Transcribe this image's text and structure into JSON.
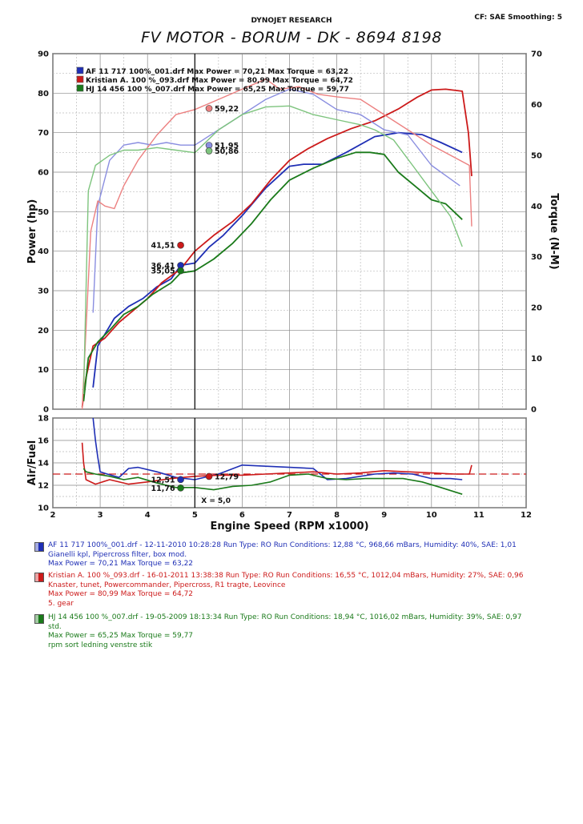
{
  "header": {
    "brand": "DYNOJET RESEARCH",
    "settings": "CF: SAE  Smoothing: 5",
    "title": "FV MOTOR - BORUM - DK - 8694 8198"
  },
  "colors": {
    "blue": "#1f2fb5",
    "red": "#cc1a1a",
    "green": "#1a7a1a",
    "light_blue": "#8a8ee0",
    "light_red": "#ec8080",
    "light_green": "#7ec47e"
  },
  "chart_data": [
    {
      "type": "line",
      "panel": "power-torque",
      "xlabel": "Engine Speed (RPM x1000)",
      "ylabel": "Power (hp)",
      "y2label": "Torque (N-M)",
      "xlim": [
        2,
        12
      ],
      "ylim": [
        0,
        90
      ],
      "y2lim": [
        0,
        70
      ],
      "grid": true,
      "cursor_x": 5.0,
      "series": [
        {
          "name": "AF 11 717 100%_001.drf",
          "measure": "power",
          "color": "#1f2fb5",
          "x": [
            2.85,
            2.95,
            3.1,
            3.3,
            3.6,
            3.9,
            4.2,
            4.5,
            4.7,
            5.0,
            5.3,
            5.6,
            6.0,
            6.5,
            7.0,
            7.3,
            7.7,
            8.2,
            8.8,
            9.3,
            9.8,
            10.2,
            10.65
          ],
          "y": [
            5.5,
            16,
            19,
            23,
            26,
            28,
            31,
            33,
            36.4,
            37,
            41,
            44,
            49,
            56,
            61.5,
            62,
            62,
            65,
            69,
            70,
            69.5,
            67.5,
            65
          ]
        },
        {
          "name": "Kristian A. 100 %_093.drf",
          "measure": "power",
          "color": "#cc1a1a",
          "x": [
            2.62,
            2.7,
            2.85,
            3.1,
            3.4,
            3.7,
            4.0,
            4.3,
            4.7,
            5.0,
            5.4,
            5.8,
            6.2,
            6.6,
            7.0,
            7.4,
            7.8,
            8.3,
            8.8,
            9.3,
            9.7,
            10.0,
            10.3,
            10.65,
            10.78,
            10.85
          ],
          "y": [
            0.5,
            8,
            16,
            18,
            22,
            25,
            28,
            32,
            35.5,
            40,
            44,
            47.5,
            52,
            58,
            63,
            66,
            68.5,
            71,
            73,
            76,
            79,
            80.8,
            81,
            80.5,
            70,
            59
          ]
        },
        {
          "name": "HJ 14 456 100 %_007.drf",
          "measure": "power",
          "color": "#1a7a1a",
          "x": [
            2.65,
            2.75,
            2.95,
            3.2,
            3.5,
            3.8,
            4.1,
            4.5,
            4.7,
            5.0,
            5.4,
            5.8,
            6.2,
            6.6,
            7.0,
            7.5,
            8.0,
            8.4,
            8.7,
            9.0,
            9.3,
            9.7,
            10.0,
            10.3,
            10.65
          ],
          "y": [
            2,
            13,
            17,
            20,
            24,
            26,
            29,
            32,
            34.5,
            35,
            38,
            42,
            47,
            53,
            58,
            61,
            63.5,
            65,
            65,
            64.5,
            60,
            56,
            53,
            52,
            48
          ]
        },
        {
          "name": "AF 11 717 100%_001.drf",
          "measure": "torque",
          "color": "#8a8ee0",
          "x": [
            2.85,
            2.95,
            3.2,
            3.5,
            3.8,
            4.1,
            4.4,
            4.7,
            5.0,
            5.5,
            6.0,
            6.5,
            7.0,
            7.5,
            8.0,
            8.5,
            9.0,
            9.5,
            10.0,
            10.3,
            10.6
          ],
          "y": [
            19,
            40,
            49,
            52,
            52.5,
            52,
            52.5,
            52,
            52,
            55,
            58,
            61,
            63,
            62,
            59,
            58,
            55,
            54,
            48,
            46,
            44
          ]
        },
        {
          "name": "Kristian A. 100 %_093.drf",
          "measure": "torque",
          "color": "#ec8080",
          "x": [
            2.62,
            2.8,
            2.95,
            3.1,
            3.3,
            3.5,
            3.8,
            4.2,
            4.6,
            5.0,
            5.5,
            6.0,
            6.5,
            6.8,
            7.2,
            7.6,
            8.0,
            8.5,
            9.0,
            9.5,
            10.0,
            10.5,
            10.8,
            10.85
          ],
          "y": [
            0,
            35,
            41,
            40,
            39.5,
            44,
            49,
            54,
            58,
            59,
            61,
            63,
            65,
            63,
            63.5,
            62,
            61.5,
            61,
            58,
            55,
            52,
            49.5,
            48,
            36
          ]
        },
        {
          "name": "HJ 14 456 100 %_007.drf",
          "measure": "torque",
          "color": "#7ec47e",
          "x": [
            2.65,
            2.75,
            2.9,
            3.2,
            3.5,
            3.8,
            4.2,
            4.6,
            5.0,
            5.5,
            6.0,
            6.5,
            7.0,
            7.5,
            8.0,
            8.5,
            8.8,
            9.2,
            9.6,
            10.0,
            10.4,
            10.65
          ],
          "y": [
            3,
            43,
            48,
            50,
            51,
            51,
            51.5,
            51,
            50.5,
            55,
            58,
            59.5,
            59.7,
            58,
            57,
            56,
            55,
            53,
            48,
            43,
            38,
            32
          ]
        }
      ],
      "annotations": [
        {
          "x": 5.3,
          "y": 59.22,
          "axis": "torque",
          "label": "59,22",
          "color": "#ec8080"
        },
        {
          "x": 5.3,
          "y": 51.95,
          "axis": "torque",
          "label": "51,95",
          "color": "#8a8ee0"
        },
        {
          "x": 5.3,
          "y": 50.86,
          "axis": "torque",
          "label": "50,86",
          "color": "#7ec47e"
        },
        {
          "x": 4.7,
          "y": 41.51,
          "axis": "power",
          "label": "41,51",
          "color": "#cc1a1a"
        },
        {
          "x": 4.7,
          "y": 36.41,
          "axis": "power",
          "label": "36,41",
          "color": "#1f2fb5"
        },
        {
          "x": 4.7,
          "y": 35.05,
          "axis": "power",
          "label": "35,05",
          "color": "#1a7a1a"
        }
      ]
    },
    {
      "type": "line",
      "panel": "air-fuel",
      "ylabel": "Air/Fuel",
      "xlim": [
        2,
        12
      ],
      "ylim": [
        10,
        18
      ],
      "grid": true,
      "reference_line": 13.0,
      "cursor_readout": "X = 5,0",
      "series": [
        {
          "name": "AF 11 717 100%_001.drf",
          "color": "#1f2fb5",
          "x": [
            2.85,
            2.9,
            2.95,
            3.0,
            3.15,
            3.4,
            3.6,
            3.8,
            4.2,
            4.6,
            5.0,
            5.5,
            6.0,
            6.5,
            7.0,
            7.5,
            7.8,
            8.2,
            8.8,
            9.2,
            9.6,
            10.0,
            10.4,
            10.65
          ],
          "y": [
            18,
            16,
            14.5,
            13.2,
            13.0,
            12.7,
            13.5,
            13.6,
            13.2,
            12.7,
            12.5,
            13.0,
            13.8,
            13.7,
            13.6,
            13.5,
            12.5,
            12.6,
            13.0,
            13.1,
            13.0,
            12.6,
            12.6,
            12.5
          ]
        },
        {
          "name": "Kristian A. 100 %_093.drf",
          "color": "#cc1a1a",
          "x": [
            2.62,
            2.65,
            2.7,
            2.9,
            3.2,
            3.6,
            4.0,
            4.5,
            5.0,
            5.5,
            6.0,
            6.5,
            7.0,
            7.5,
            8.0,
            8.5,
            9.0,
            9.5,
            10.0,
            10.5,
            10.8,
            10.85
          ],
          "y": [
            15.8,
            14,
            12.5,
            12.1,
            12.5,
            12.1,
            12.3,
            12.6,
            12.8,
            12.9,
            12.9,
            13.0,
            13.1,
            13.2,
            13.0,
            13.1,
            13.3,
            13.2,
            13.1,
            13.0,
            13.0,
            13.8
          ]
        },
        {
          "name": "HJ 14 456 100 %_007.drf",
          "color": "#1a7a1a",
          "x": [
            2.65,
            2.7,
            2.9,
            3.2,
            3.5,
            3.8,
            4.2,
            4.6,
            5.0,
            5.4,
            5.8,
            6.2,
            6.6,
            7.0,
            7.4,
            7.8,
            8.2,
            8.6,
            9.0,
            9.4,
            9.8,
            10.2,
            10.65
          ],
          "y": [
            13.5,
            13.2,
            13.0,
            12.8,
            12.5,
            12.7,
            12.2,
            11.8,
            11.8,
            11.6,
            11.9,
            12.0,
            12.3,
            12.9,
            13.0,
            12.6,
            12.5,
            12.6,
            12.6,
            12.6,
            12.3,
            11.8,
            11.2
          ]
        }
      ],
      "annotations": [
        {
          "x": 5.3,
          "y": 12.79,
          "label": "12,79",
          "color": "#cc1a1a"
        },
        {
          "x": 4.7,
          "y": 12.51,
          "label": "12,51",
          "color": "#1f2fb5"
        },
        {
          "x": 4.7,
          "y": 11.76,
          "label": "11,76",
          "color": "#1a7a1a"
        }
      ]
    }
  ],
  "legend_top": [
    {
      "text": "AF 11 717 100%_001.drf Max Power = 70,21     Max Torque = 63,22",
      "color": "#1f2fb5"
    },
    {
      "text": "Kristian A. 100 %_093.drf Max Power = 80,99     Max Torque = 64,72",
      "color": "#cc1a1a"
    },
    {
      "text": "HJ 14 456 100 %_007.drf Max Power = 65,25     Max Torque = 59,77",
      "color": "#1a7a1a"
    }
  ],
  "runs": [
    {
      "color": "#1f2fb5",
      "lines": [
        "AF 11 717 100%_001.drf - 12-11-2010 10:28:28  Run Type: RO  Run Conditions: 12,88 °C, 968,66 mBars,  Humidity:  40%, SAE: 1,01",
        "Gianelli kpl, Pipercross filter, box mod.",
        "Max Power = 70,21  Max Torque = 63,22"
      ]
    },
    {
      "color": "#cc1a1a",
      "lines": [
        "Kristian A. 100 %_093.drf - 16-01-2011 13:38:38  Run Type: RO  Run Conditions: 16,55 °C, 1012,04 mBars,  Humidity:  27%, SAE: 0,96",
        "Knaster, tunet,  Powercommander, Pipercross, R1 tragte, Leovince",
        "Max Power = 80,99  Max Torque = 64,72",
        "5. gear"
      ]
    },
    {
      "color": "#1a7a1a",
      "lines": [
        "HJ 14 456 100 %_007.drf - 19-05-2009 18:13:34  Run Type: RO  Run Conditions: 18,94 °C, 1016,02 mBars,  Humidity:  39%, SAE: 0,97",
        "std.",
        "Max Power = 65,25  Max Torque = 59,77",
        "rpm sort ledning venstre stik"
      ]
    }
  ]
}
